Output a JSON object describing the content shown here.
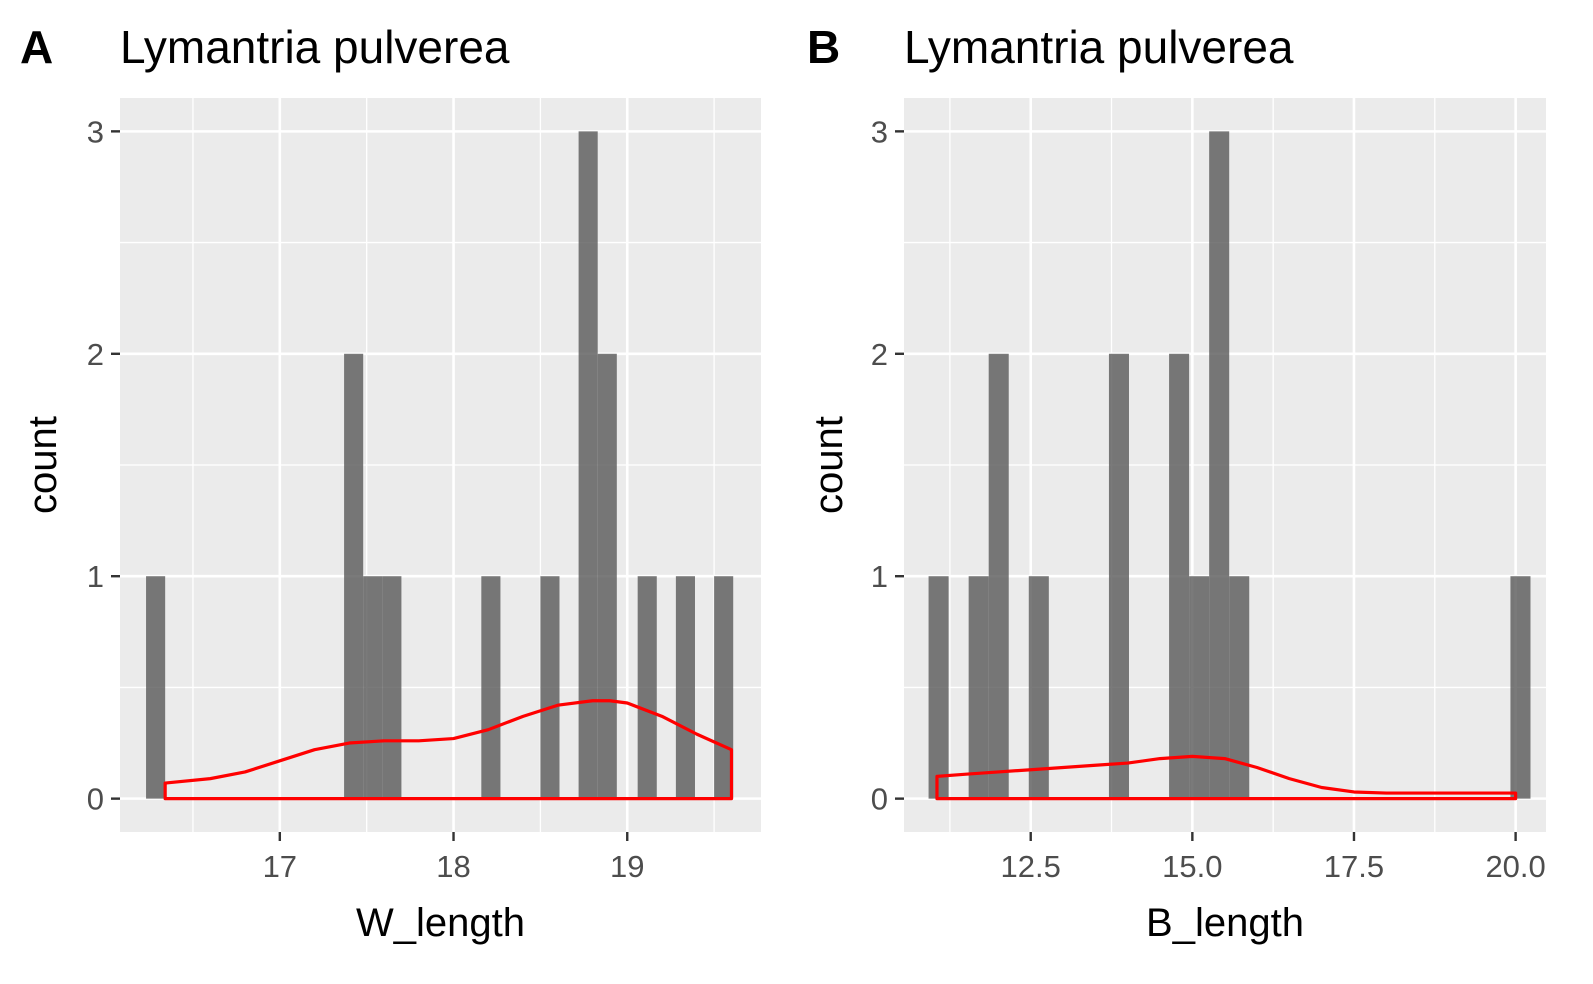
{
  "chart_data": [
    {
      "type": "histogram",
      "tag": "A",
      "title": "Lymantria pulverea",
      "xlabel": "W_length",
      "ylabel": "count",
      "xlim": [
        16.08,
        19.77
      ],
      "ylim": [
        -0.15,
        3.15
      ],
      "x_ticks": [
        17,
        18,
        19
      ],
      "x_tick_labels": [
        "17",
        "18",
        "19"
      ],
      "y_ticks": [
        0,
        1,
        2,
        3
      ],
      "y_tick_labels": [
        "0",
        "1",
        "2",
        "3"
      ],
      "grid": true,
      "bar_color": "#595959",
      "bins": [
        {
          "x0": 16.23,
          "x1": 16.34,
          "count": 1
        },
        {
          "x0": 17.37,
          "x1": 17.48,
          "count": 2
        },
        {
          "x0": 17.48,
          "x1": 17.59,
          "count": 1
        },
        {
          "x0": 17.59,
          "x1": 17.7,
          "count": 1
        },
        {
          "x0": 18.16,
          "x1": 18.27,
          "count": 1
        },
        {
          "x0": 18.5,
          "x1": 18.61,
          "count": 1
        },
        {
          "x0": 18.72,
          "x1": 18.83,
          "count": 3
        },
        {
          "x0": 18.83,
          "x1": 18.94,
          "count": 2
        },
        {
          "x0": 19.06,
          "x1": 19.17,
          "count": 1
        },
        {
          "x0": 19.28,
          "x1": 19.39,
          "count": 1
        },
        {
          "x0": 19.5,
          "x1": 19.61,
          "count": 1
        }
      ],
      "density": {
        "name": "density",
        "color": "#ff0000",
        "x": [
          16.34,
          16.6,
          16.8,
          17.0,
          17.2,
          17.4,
          17.6,
          17.8,
          18.0,
          18.2,
          18.4,
          18.6,
          18.8,
          18.9,
          19.0,
          19.2,
          19.4,
          19.6
        ],
        "y": [
          0.07,
          0.09,
          0.12,
          0.17,
          0.22,
          0.25,
          0.26,
          0.26,
          0.27,
          0.31,
          0.37,
          0.42,
          0.44,
          0.44,
          0.43,
          0.37,
          0.29,
          0.22
        ]
      }
    },
    {
      "type": "histogram",
      "tag": "B",
      "title": "Lymantria pulverea",
      "xlabel": "B_length",
      "ylabel": "count",
      "xlim": [
        10.54,
        20.47
      ],
      "ylim": [
        -0.15,
        3.15
      ],
      "x_ticks": [
        12.5,
        15.0,
        17.5,
        20.0
      ],
      "x_tick_labels": [
        "12.5",
        "15.0",
        "17.5",
        "20.0"
      ],
      "y_ticks": [
        0,
        1,
        2,
        3
      ],
      "y_tick_labels": [
        "0",
        "1",
        "2",
        "3"
      ],
      "grid": true,
      "bar_color": "#595959",
      "bins": [
        {
          "x0": 10.92,
          "x1": 11.23,
          "count": 1
        },
        {
          "x0": 11.54,
          "x1": 11.85,
          "count": 1
        },
        {
          "x0": 11.85,
          "x1": 12.16,
          "count": 2
        },
        {
          "x0": 12.47,
          "x1": 12.78,
          "count": 1
        },
        {
          "x0": 13.71,
          "x1": 14.02,
          "count": 2
        },
        {
          "x0": 14.64,
          "x1": 14.95,
          "count": 2
        },
        {
          "x0": 14.95,
          "x1": 15.26,
          "count": 1
        },
        {
          "x0": 15.26,
          "x1": 15.57,
          "count": 3
        },
        {
          "x0": 15.57,
          "x1": 15.88,
          "count": 1
        },
        {
          "x0": 19.92,
          "x1": 20.23,
          "count": 1
        }
      ],
      "density": {
        "name": "density",
        "color": "#ff0000",
        "x": [
          11.05,
          11.5,
          12.0,
          12.5,
          13.0,
          13.5,
          14.0,
          14.5,
          15.0,
          15.5,
          16.0,
          16.5,
          17.0,
          17.5,
          18.0,
          18.5,
          19.0,
          19.5,
          20.0
        ],
        "y": [
          0.1,
          0.11,
          0.12,
          0.13,
          0.14,
          0.15,
          0.16,
          0.18,
          0.19,
          0.18,
          0.14,
          0.09,
          0.05,
          0.03,
          0.025,
          0.025,
          0.025,
          0.025,
          0.025
        ]
      }
    }
  ]
}
